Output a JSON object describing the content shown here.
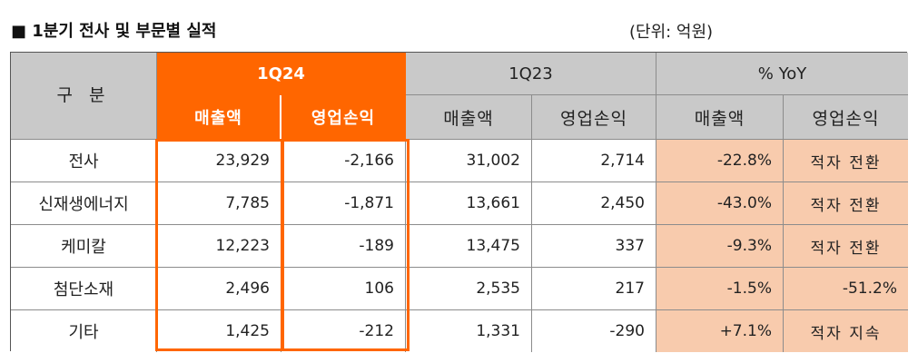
{
  "header": {
    "title": "■ 1분기 전사 및 부문별 실적",
    "unit": "(단위: 억원)"
  },
  "table": {
    "gubun_label": "구 분",
    "groups": [
      "1Q24",
      "1Q23",
      "% YoY"
    ],
    "sub_headers": [
      "매출액",
      "영업손익",
      "매출액",
      "영업손익",
      "매출액",
      "영업손익"
    ],
    "rows": [
      {
        "label": "전사",
        "values": [
          "23,929",
          "-2,166",
          "31,002",
          "2,714",
          "-22.8%",
          "적자 전환"
        ]
      },
      {
        "label": "신재생에너지",
        "values": [
          "7,785",
          "-1,871",
          "13,661",
          "2,450",
          "-43.0%",
          "적자 전환"
        ]
      },
      {
        "label": "케미칼",
        "values": [
          "12,223",
          "-189",
          "13,475",
          "337",
          "-9.3%",
          "적자 전환"
        ]
      },
      {
        "label": "첨단소재",
        "values": [
          "2,496",
          "106",
          "2,535",
          "217",
          "-1.5%",
          "-51.2%"
        ]
      },
      {
        "label": "기타",
        "values": [
          "1,425",
          "-212",
          "1,331",
          "-290",
          "+7.1%",
          "적자 지속"
        ]
      }
    ]
  },
  "colors": {
    "highlight": "#ff6600",
    "header_bg": "#c9c9c9",
    "yoy_bg": "#f8cbad"
  }
}
